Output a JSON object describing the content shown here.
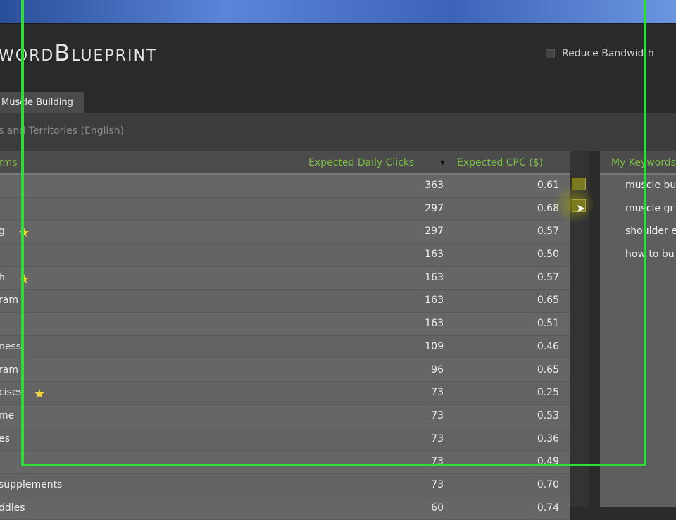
{
  "app": {
    "logo": "wordBlueprint",
    "reduce_bandwidth": "Reduce Bandwidth",
    "reduce_checked": false
  },
  "tab": {
    "label": "Muscle Building"
  },
  "subtitle": "s and Territories (English)",
  "table": {
    "columns": {
      "keyword": "rms",
      "clicks": "Expected Daily Clicks",
      "sort_icon": "▾",
      "cpc": "Expected CPC ($)"
    },
    "rows": [
      {
        "keyword": "",
        "clicks": "363",
        "cpc": "0.61",
        "star": false
      },
      {
        "keyword": "",
        "clicks": "297",
        "cpc": "0.68",
        "star": false
      },
      {
        "keyword": "g",
        "clicks": "297",
        "cpc": "0.57",
        "star": true
      },
      {
        "keyword": "",
        "clicks": "163",
        "cpc": "0.50",
        "star": false
      },
      {
        "keyword": "h",
        "clicks": "163",
        "cpc": "0.57",
        "star": true
      },
      {
        "keyword": "ram",
        "clicks": "163",
        "cpc": "0.65",
        "star": false
      },
      {
        "keyword": "",
        "clicks": "163",
        "cpc": "0.51",
        "star": false
      },
      {
        "keyword": "ness",
        "clicks": "109",
        "cpc": "0.46",
        "star": false
      },
      {
        "keyword": "ram",
        "clicks": "96",
        "cpc": "0.65",
        "star": false
      },
      {
        "keyword": "cises",
        "clicks": "73",
        "cpc": "0.25",
        "star": true
      },
      {
        "keyword": "me",
        "clicks": "73",
        "cpc": "0.53",
        "star": false
      },
      {
        "keyword": "es",
        "clicks": "73",
        "cpc": "0.36",
        "star": false
      },
      {
        "keyword": "",
        "clicks": "73",
        "cpc": "0.49",
        "star": false
      },
      {
        "keyword": "supplements",
        "clicks": "73",
        "cpc": "0.70",
        "star": false
      },
      {
        "keyword": "ddles",
        "clicks": "60",
        "cpc": "0.74",
        "star": false
      }
    ]
  },
  "my_keywords": {
    "title": "My Keywords",
    "items": [
      "muscle bu",
      "muscle gr",
      "shoulder e",
      "how to bu"
    ]
  },
  "colors": {
    "accent_green": "#7bbf45",
    "highlight_border": "#2fdc3a",
    "star": "#f0d23a"
  }
}
